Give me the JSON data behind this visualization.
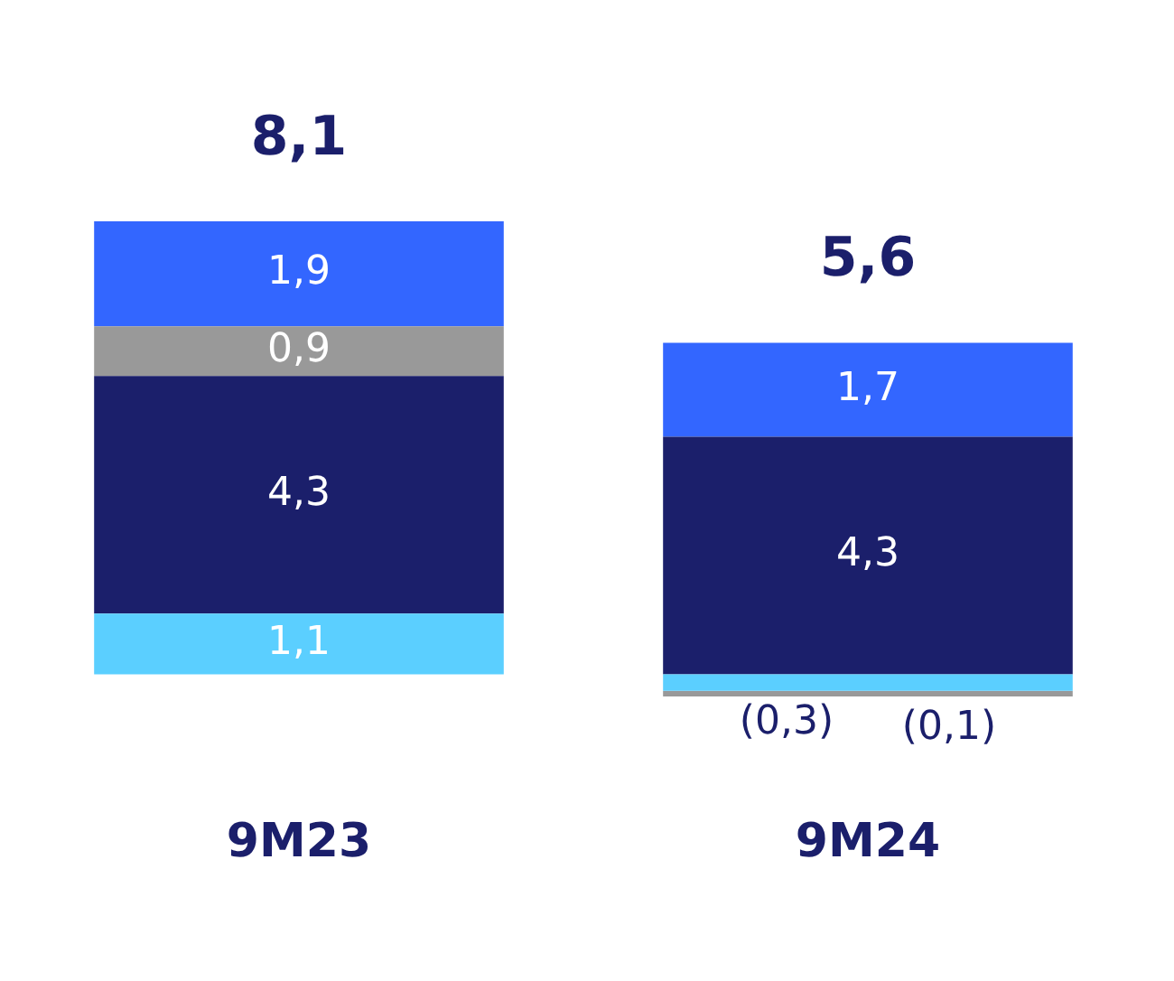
{
  "chart_data": {
    "type": "bar",
    "stacked": true,
    "categories": [
      "9M23",
      "9M24"
    ],
    "series": [
      {
        "color": "#5bcfff",
        "values": [
          1.1,
          -0.3
        ],
        "value_labels": [
          "1,1",
          "(0,3)"
        ]
      },
      {
        "color": "#1b1f6b",
        "values": [
          4.3,
          4.3
        ],
        "value_labels": [
          "4,3",
          "4,3"
        ]
      },
      {
        "color": "#999999",
        "values": [
          0.9,
          -0.1
        ],
        "value_labels": [
          "0,9",
          "(0,1)"
        ]
      },
      {
        "color": "#3366ff",
        "values": [
          1.9,
          1.7
        ],
        "value_labels": [
          "1,9",
          "1,7"
        ]
      }
    ],
    "totals": [
      "8,1",
      "5,6"
    ],
    "tick_labels": "x",
    "grid": false,
    "legend": false
  }
}
